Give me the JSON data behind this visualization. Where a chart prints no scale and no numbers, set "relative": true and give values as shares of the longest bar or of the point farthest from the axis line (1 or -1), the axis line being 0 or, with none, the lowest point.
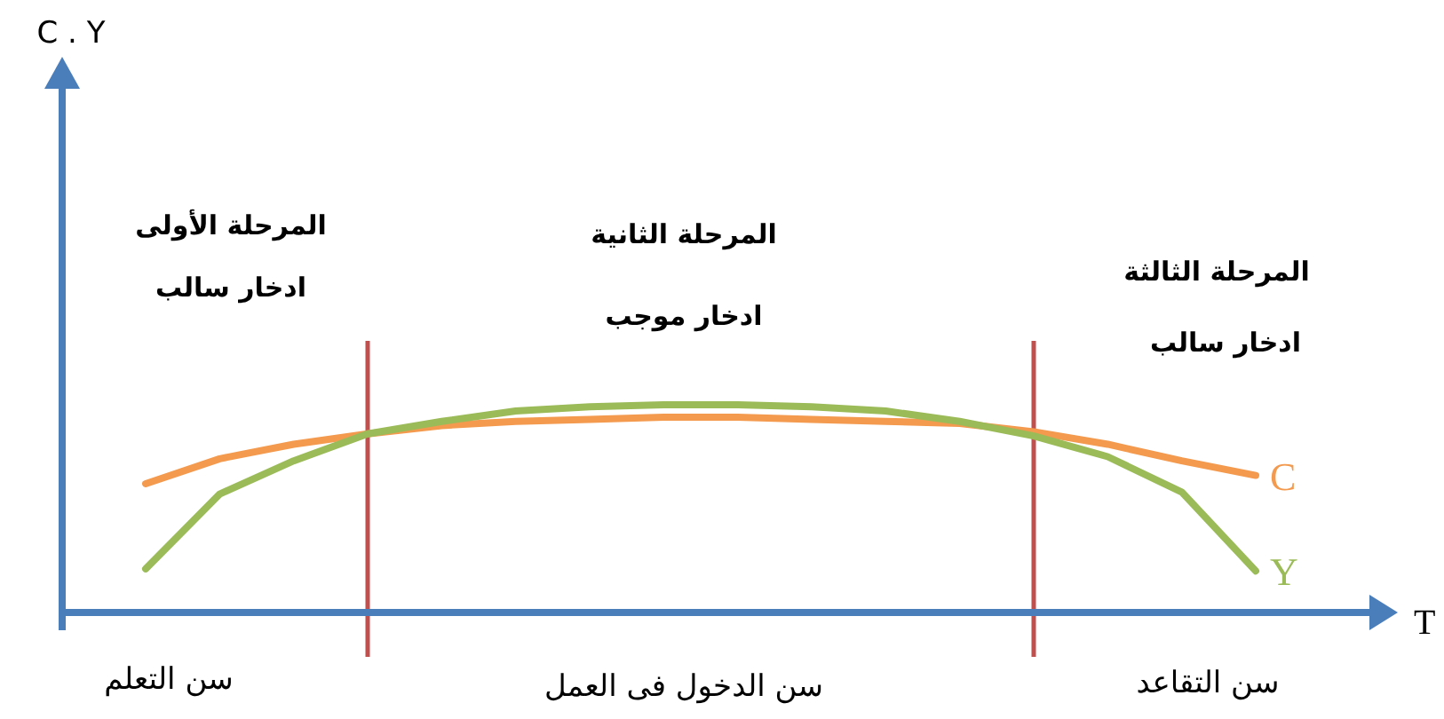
{
  "chart_data": {
    "type": "line",
    "relative": true,
    "xlabel": "T",
    "line_style": "solid",
    "categories": [
      null,
      null,
      null,
      null,
      null,
      null,
      null,
      null,
      null,
      null,
      null,
      null,
      null,
      null,
      null,
      null
    ],
    "series": [
      {
        "name": "C",
        "color": "#f39a4f",
        "values": [
          0.62,
          0.74,
          0.81,
          0.86,
          0.9,
          0.92,
          0.93,
          0.94,
          0.94,
          0.93,
          0.92,
          0.91,
          0.87,
          0.81,
          0.73,
          0.66
        ]
      },
      {
        "name": "Y",
        "color": "#9bbb59",
        "values": [
          0.21,
          0.57,
          0.73,
          0.86,
          0.92,
          0.97,
          0.99,
          1,
          1,
          0.99,
          0.97,
          0.92,
          0.85,
          0.75,
          0.58,
          0.2
        ]
      }
    ],
    "annotations": [
      "المرحلة الأولى",
      "ادخار سالب",
      "المرحلة الثانية",
      "ادخار موجب",
      "المرحلة الثالثة",
      "ادخار سالب",
      "سن التعلم",
      "سن الدخول فى العمل",
      "سن التقاعد",
      "C . Y"
    ]
  }
}
